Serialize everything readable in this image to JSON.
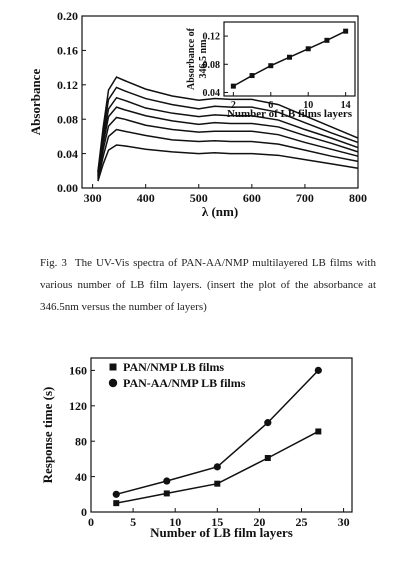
{
  "chart_data": [
    {
      "type": "line",
      "xlabel": "λ (nm)",
      "ylabel": "Absorbance",
      "x": [
        310,
        320,
        330,
        345,
        360,
        400,
        450,
        500,
        530,
        560,
        600,
        650,
        700,
        750,
        800
      ],
      "series": [
        {
          "color": "#111111",
          "values": [
            0.019,
            0.071,
            0.114,
            0.129,
            0.125,
            0.115,
            0.107,
            0.102,
            0.104,
            0.103,
            0.103,
            0.097,
            0.084,
            0.071,
            0.058
          ]
        },
        {
          "color": "#111111",
          "values": [
            0.018,
            0.064,
            0.103,
            0.117,
            0.113,
            0.104,
            0.097,
            0.092,
            0.095,
            0.094,
            0.094,
            0.088,
            0.076,
            0.064,
            0.053
          ]
        },
        {
          "color": "#111111",
          "values": [
            0.016,
            0.058,
            0.092,
            0.105,
            0.102,
            0.093,
            0.087,
            0.083,
            0.085,
            0.084,
            0.084,
            0.079,
            0.068,
            0.058,
            0.047
          ]
        },
        {
          "color": "#111111",
          "values": [
            0.014,
            0.052,
            0.083,
            0.094,
            0.091,
            0.084,
            0.078,
            0.074,
            0.076,
            0.075,
            0.075,
            0.071,
            0.061,
            0.052,
            0.042
          ]
        },
        {
          "color": "#111111",
          "values": [
            0.012,
            0.045,
            0.072,
            0.082,
            0.08,
            0.073,
            0.068,
            0.065,
            0.066,
            0.066,
            0.066,
            0.062,
            0.053,
            0.045,
            0.037
          ]
        },
        {
          "color": "#111111",
          "values": [
            0.01,
            0.037,
            0.06,
            0.068,
            0.066,
            0.061,
            0.056,
            0.054,
            0.055,
            0.054,
            0.054,
            0.051,
            0.044,
            0.037,
            0.031
          ]
        },
        {
          "color": "#111111",
          "values": [
            0.008,
            0.028,
            0.044,
            0.05,
            0.049,
            0.045,
            0.042,
            0.04,
            0.041,
            0.04,
            0.04,
            0.038,
            0.033,
            0.028,
            0.023
          ]
        }
      ],
      "xlim": [
        280,
        800
      ],
      "xticks": [
        300,
        400,
        500,
        600,
        700,
        800
      ],
      "ylim": [
        0,
        0.2
      ],
      "yticks": [
        {
          "value": 0,
          "label": "0.00"
        },
        0.04,
        0.08,
        0.12,
        0.16,
        {
          "value": 0.2,
          "label": "0.20"
        }
      ]
    },
    {
      "type": "line",
      "xlabel": "Number of LB films layers",
      "ylabel": [
        "Absorbance of",
        "346.5 nm"
      ],
      "x": [
        2,
        4,
        6,
        8,
        10,
        12,
        14
      ],
      "series": [
        {
          "color": "#111111",
          "marker": "square",
          "values": [
            0.049,
            0.064,
            0.078,
            0.09,
            0.102,
            0.114,
            0.127
          ]
        }
      ],
      "xlim": [
        1,
        15
      ],
      "xticks": [
        2,
        6,
        10,
        14
      ],
      "ylim": [
        0.035,
        0.14
      ],
      "yticks": [
        0.04,
        0.08,
        0.12
      ]
    },
    {
      "type": "line",
      "xlabel": "Number of LB film layers",
      "ylabel": "Response time (s)",
      "x": [
        3,
        9,
        15,
        21,
        27
      ],
      "series": [
        {
          "name": "PAN/NMP LB films",
          "color": "#111111",
          "marker": "square",
          "values": [
            10,
            21,
            32,
            61,
            91
          ]
        },
        {
          "name": "PAN-AA/NMP LB films",
          "color": "#111111",
          "marker": "circle",
          "values": [
            20,
            35,
            51,
            101,
            160
          ]
        }
      ],
      "xlim": [
        0,
        31
      ],
      "xticks": [
        0,
        5,
        10,
        15,
        20,
        25,
        30
      ],
      "ylim": [
        0,
        174
      ],
      "yticks": [
        0,
        40,
        80,
        120,
        160
      ],
      "legend": "upper left"
    }
  ],
  "caption": {
    "label": "Fig. 3",
    "text": "The UV-Vis spectra of PAN-AA/NMP multilayered LB films with various number of LB film layers. (insert the plot of the absorbance at 346.5nm versus the number of layers)"
  }
}
